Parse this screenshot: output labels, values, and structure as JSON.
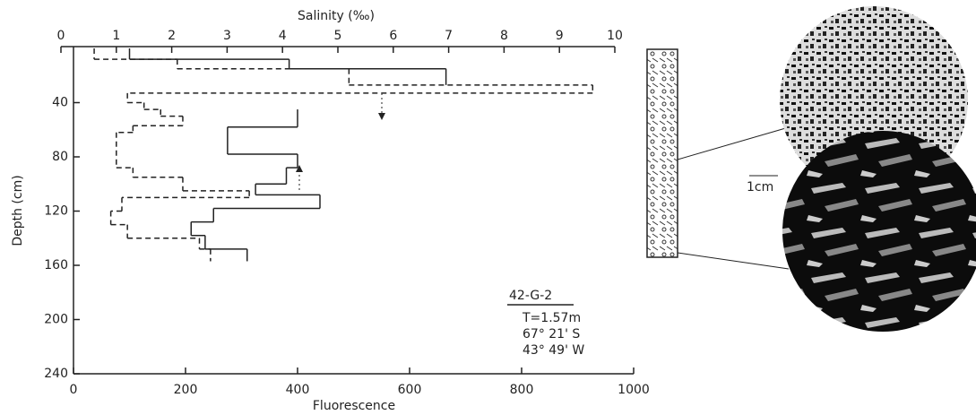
{
  "chart_data": {
    "type": "step",
    "x_label": "Fluorescence",
    "x2_label": "Salinity (‰)",
    "y_label": "Depth (cm)",
    "xlim": [
      0,
      1000
    ],
    "xticks": [
      0,
      200,
      400,
      600,
      800,
      1000
    ],
    "x2lim": [
      0,
      10
    ],
    "x2ticks": [
      0,
      1,
      2,
      3,
      4,
      5,
      6,
      7,
      8,
      9,
      10
    ],
    "ylim": [
      0,
      240
    ],
    "yticks": [
      40,
      80,
      120,
      160,
      200,
      240
    ],
    "y_inverted": true,
    "series": [
      {
        "axis": "x",
        "style": "solid",
        "color": "#222",
        "depth_bins": [
          0,
          8,
          15,
          27,
          45,
          58,
          78,
          88,
          100,
          108,
          118,
          128,
          138,
          148,
          157
        ],
        "values": [
          100,
          385,
          665,
          null,
          400,
          275,
          400,
          380,
          325,
          440,
          250,
          210,
          235,
          310
        ]
      },
      {
        "axis": "x2",
        "style": "dashed",
        "color": "#222",
        "depth_bins": [
          0,
          8,
          15,
          27,
          33,
          40,
          45,
          50,
          57,
          62,
          88,
          95,
          105,
          110,
          120,
          130,
          140,
          148,
          157
        ],
        "values": [
          0.6,
          2.1,
          5.2,
          9.6,
          1.2,
          1.5,
          1.8,
          2.2,
          1.3,
          1.0,
          1.3,
          2.2,
          3.4,
          1.1,
          0.9,
          1.2,
          2.5,
          2.7
        ]
      }
    ],
    "station": {
      "name": "42-G-2",
      "lines": [
        "T=1.57m",
        "67° 21' S",
        "43° 49' W"
      ]
    },
    "scale_bar": "1cm"
  }
}
